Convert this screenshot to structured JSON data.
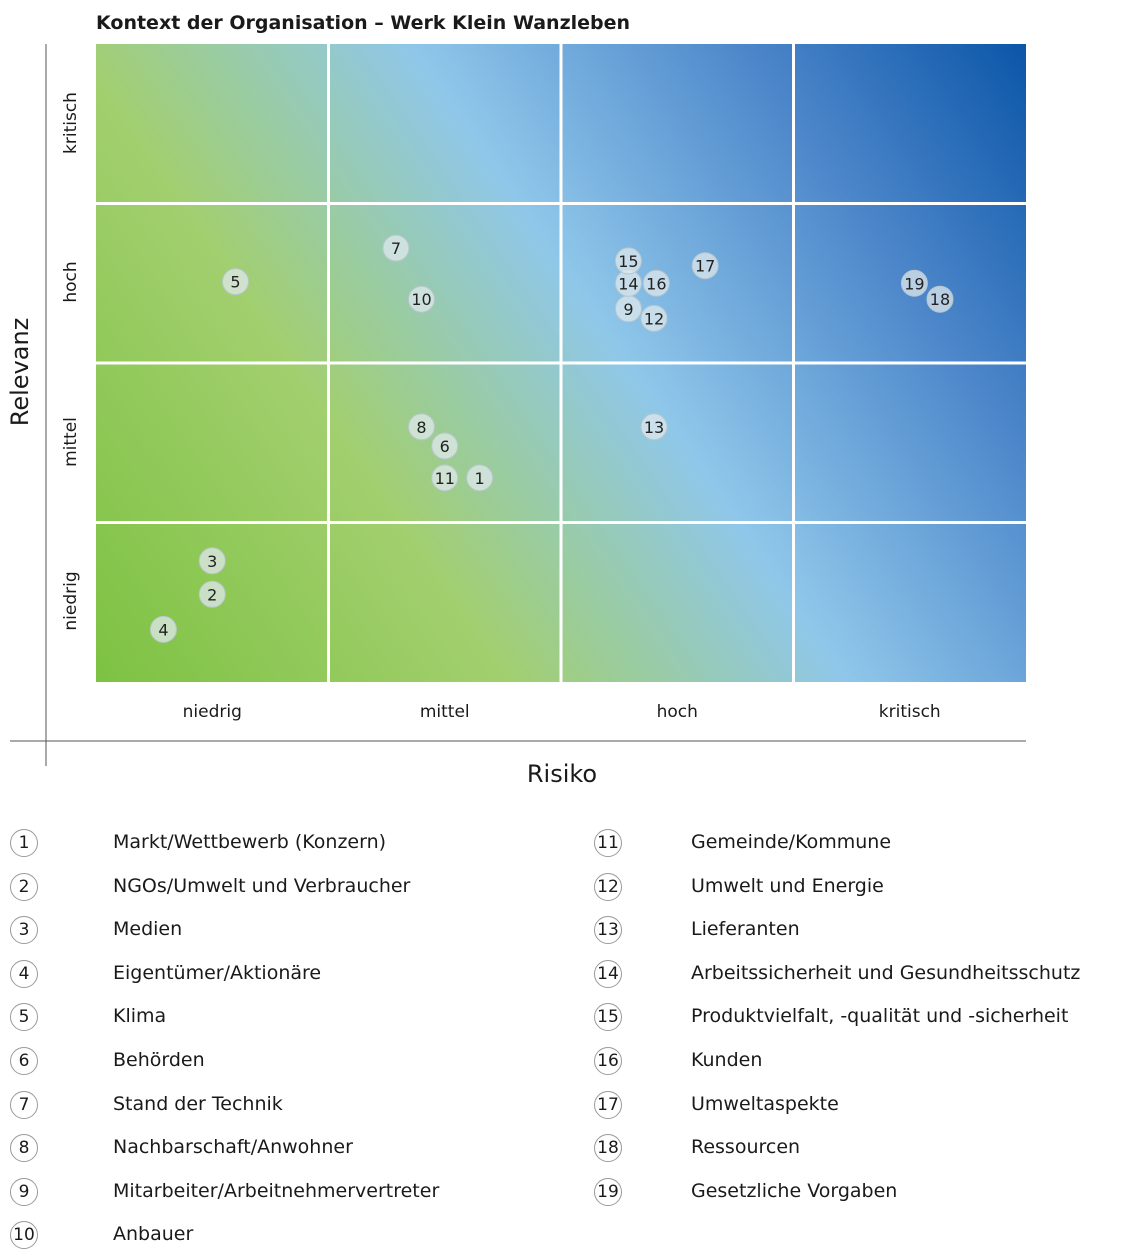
{
  "chart_data": {
    "type": "scatter",
    "title": "Kontext der Organisation – Werk Klein Wanzleben",
    "xlabel": "Risiko",
    "ylabel": "Relevanz",
    "x_categories": [
      "niedrig",
      "mittel",
      "hoch",
      "kritisch"
    ],
    "y_categories": [
      "niedrig",
      "mittel",
      "hoch",
      "kritisch"
    ],
    "xlim": [
      0,
      4
    ],
    "ylim": [
      0,
      4
    ],
    "grid": true,
    "points": [
      {
        "label": "1",
        "x": 1.65,
        "y": 1.28
      },
      {
        "label": "2",
        "x": 0.5,
        "y": 0.55
      },
      {
        "label": "3",
        "x": 0.5,
        "y": 0.76
      },
      {
        "label": "4",
        "x": 0.29,
        "y": 0.33
      },
      {
        "label": "5",
        "x": 0.6,
        "y": 2.51
      },
      {
        "label": "6",
        "x": 1.5,
        "y": 1.48
      },
      {
        "label": "7",
        "x": 1.29,
        "y": 2.72
      },
      {
        "label": "8",
        "x": 1.4,
        "y": 1.6
      },
      {
        "label": "9",
        "x": 2.29,
        "y": 2.34
      },
      {
        "label": "10",
        "x": 1.4,
        "y": 2.4
      },
      {
        "label": "11",
        "x": 1.5,
        "y": 1.28
      },
      {
        "label": "12",
        "x": 2.4,
        "y": 2.28
      },
      {
        "label": "13",
        "x": 2.4,
        "y": 1.6
      },
      {
        "label": "14",
        "x": 2.29,
        "y": 2.5
      },
      {
        "label": "15",
        "x": 2.29,
        "y": 2.64
      },
      {
        "label": "16",
        "x": 2.41,
        "y": 2.5
      },
      {
        "label": "17",
        "x": 2.62,
        "y": 2.61
      },
      {
        "label": "18",
        "x": 3.63,
        "y": 2.4
      },
      {
        "label": "19",
        "x": 3.52,
        "y": 2.5
      }
    ]
  },
  "legend": [
    {
      "num": "1",
      "label": "Markt/Wettbewerb (Konzern)"
    },
    {
      "num": "2",
      "label": "NGOs/Umwelt und Verbraucher"
    },
    {
      "num": "3",
      "label": "Medien"
    },
    {
      "num": "4",
      "label": "Eigentümer/Aktionäre"
    },
    {
      "num": "5",
      "label": "Klima"
    },
    {
      "num": "6",
      "label": "Behörden"
    },
    {
      "num": "7",
      "label": "Stand der Technik"
    },
    {
      "num": "8",
      "label": "Nachbarschaft/Anwohner"
    },
    {
      "num": "9",
      "label": "Mitarbeiter/Arbeitnehmervertreter"
    },
    {
      "num": "10",
      "label": "Anbauer"
    },
    {
      "num": "11",
      "label": "Gemeinde/Kommune"
    },
    {
      "num": "12",
      "label": "Umwelt und Energie"
    },
    {
      "num": "13",
      "label": "Lieferanten"
    },
    {
      "num": "14",
      "label": "Arbeitssicherheit und Gesundheitsschutz"
    },
    {
      "num": "15",
      "label": "Produktvielfalt, -qualität und -sicherheit"
    },
    {
      "num": "16",
      "label": "Kunden"
    },
    {
      "num": "17",
      "label": "Umweltaspekte"
    },
    {
      "num": "18",
      "label": "Ressourcen"
    },
    {
      "num": "19",
      "label": "Gesetzliche Vorgaben"
    }
  ],
  "colors": {
    "green": "#7dc242",
    "light_blue": "#8fc7ea",
    "dark_blue": "#0b56a8",
    "point_fill": "#dfe8ec",
    "point_stroke": "#b8c6cc"
  }
}
